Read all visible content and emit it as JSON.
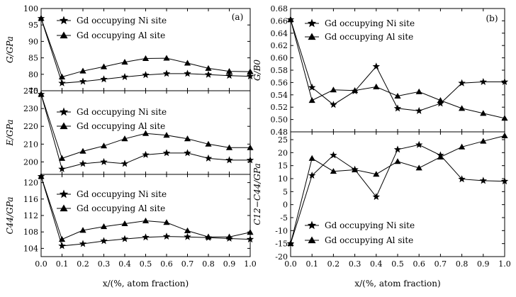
{
  "chart_data": [
    {
      "panel": "a-top",
      "type": "line",
      "ylabel": "G/GPa",
      "ylim": [
        75,
        100
      ],
      "yticks": [
        75,
        80,
        85,
        90,
        95,
        100
      ],
      "x": [
        0.0,
        0.1,
        0.2,
        0.3,
        0.4,
        0.5,
        0.6,
        0.7,
        0.8,
        0.9,
        1.0
      ],
      "xticks_shown": false,
      "panel_label": "(a)",
      "legend_position": "top-center",
      "series": [
        {
          "name": "Gd occupying Ni site",
          "marker": "star",
          "values": [
            97,
            77.3,
            77.8,
            78.5,
            79.2,
            79.8,
            80.2,
            80.2,
            79.9,
            79.6,
            79.4
          ]
        },
        {
          "name": "Gd occupying Al site",
          "marker": "triangle",
          "values": [
            97,
            79.2,
            81.0,
            82.3,
            83.7,
            84.8,
            84.9,
            83.4,
            81.8,
            80.9,
            80.8
          ]
        }
      ]
    },
    {
      "panel": "a-mid",
      "type": "line",
      "ylabel": "E/GPa",
      "ylim": [
        193,
        240
      ],
      "yticks": [
        200,
        210,
        220,
        230,
        240
      ],
      "x": [
        0.0,
        0.1,
        0.2,
        0.3,
        0.4,
        0.5,
        0.6,
        0.7,
        0.8,
        0.9,
        1.0
      ],
      "xticks_shown": false,
      "legend_position": "top-center",
      "series": [
        {
          "name": "Gd occupying Ni site",
          "marker": "star",
          "values": [
            238,
            196,
            199,
            200,
            199,
            204,
            205,
            205,
            202,
            201,
            201
          ]
        },
        {
          "name": "Gd occupying Al site",
          "marker": "triangle",
          "values": [
            238,
            202,
            206,
            209,
            213,
            216,
            215,
            213,
            210,
            208,
            208
          ]
        }
      ]
    },
    {
      "panel": "a-bottom",
      "type": "line",
      "ylabel": "C44/GPa",
      "ylim": [
        102,
        122
      ],
      "yticks": [
        104,
        108,
        112,
        116,
        120
      ],
      "x": [
        0.0,
        0.1,
        0.2,
        0.3,
        0.4,
        0.5,
        0.6,
        0.7,
        0.8,
        0.9,
        1.0
      ],
      "xticks": [
        "0.0",
        "0.1",
        "0.2",
        "0.3",
        "0.4",
        "0.5",
        "0.6",
        "0.7",
        "0.8",
        "0.9",
        "1.0"
      ],
      "xlabel": "x/(%, atom fraction)",
      "legend_position": "top-center",
      "series": [
        {
          "name": "Gd occupying Ni site",
          "marker": "star",
          "values": [
            121.5,
            104.6,
            105.1,
            105.8,
            106.3,
            106.7,
            106.9,
            106.8,
            106.6,
            106.4,
            106.2
          ]
        },
        {
          "name": "Gd occupying Al site",
          "marker": "triangle",
          "values": [
            121.5,
            106.2,
            108.4,
            109.3,
            110.0,
            110.7,
            110.3,
            108.3,
            106.8,
            106.8,
            107.9
          ]
        }
      ]
    },
    {
      "panel": "b-top",
      "type": "line",
      "ylabel": "G/B0",
      "ylim": [
        0.48,
        0.68
      ],
      "yticks": [
        0.48,
        0.5,
        0.52,
        0.54,
        0.56,
        0.58,
        0.6,
        0.62,
        0.64,
        0.66,
        0.68
      ],
      "yticklabels": [
        "0.48",
        "0.50",
        "0.52",
        "0.54",
        "0.56",
        "0.58",
        "0.60",
        "0.62",
        "0.64",
        "0.66",
        "0.68"
      ],
      "x": [
        0.0,
        0.1,
        0.2,
        0.3,
        0.4,
        0.5,
        0.6,
        0.7,
        0.8,
        0.9,
        1.0
      ],
      "xticks_shown": false,
      "panel_label": "(b)",
      "legend_position": "top-center",
      "series": [
        {
          "name": "Gd occupying Ni site",
          "marker": "star",
          "values": [
            0.662,
            0.552,
            0.524,
            0.546,
            0.586,
            0.518,
            0.514,
            0.526,
            0.559,
            0.561,
            0.561
          ]
        },
        {
          "name": "Gd occupying Al site",
          "marker": "triangle",
          "values": [
            0.662,
            0.531,
            0.548,
            0.547,
            0.553,
            0.538,
            0.545,
            0.531,
            0.518,
            0.51,
            0.502
          ]
        }
      ]
    },
    {
      "panel": "b-bottom",
      "type": "line",
      "ylabel": "C12−C44/GPa",
      "ylim": [
        -20,
        28
      ],
      "yticks": [
        -20,
        -15,
        -10,
        -5,
        0,
        5,
        10,
        15,
        20,
        25
      ],
      "x": [
        0.0,
        0.1,
        0.2,
        0.3,
        0.4,
        0.5,
        0.6,
        0.7,
        0.8,
        0.9,
        1.0
      ],
      "xticks": [
        "0.0",
        "0.1",
        "0.2",
        "0.3",
        "0.4",
        "0.5",
        "0.6",
        "0.7",
        "0.8",
        "0.9",
        "1.0"
      ],
      "xlabel": "x/(%, atom fraction)",
      "legend_position": "bottom-left",
      "series": [
        {
          "name": "Gd occupying Ni site",
          "marker": "star",
          "values": [
            -15,
            11.2,
            19.0,
            13.5,
            3.0,
            21.2,
            23.0,
            19.0,
            9.8,
            9.2,
            9.0
          ]
        },
        {
          "name": "Gd occupying Al site",
          "marker": "triangle",
          "values": [
            -15,
            17.8,
            12.8,
            13.4,
            11.7,
            16.6,
            14.1,
            18.3,
            22.2,
            24.4,
            26.5
          ]
        }
      ]
    }
  ]
}
